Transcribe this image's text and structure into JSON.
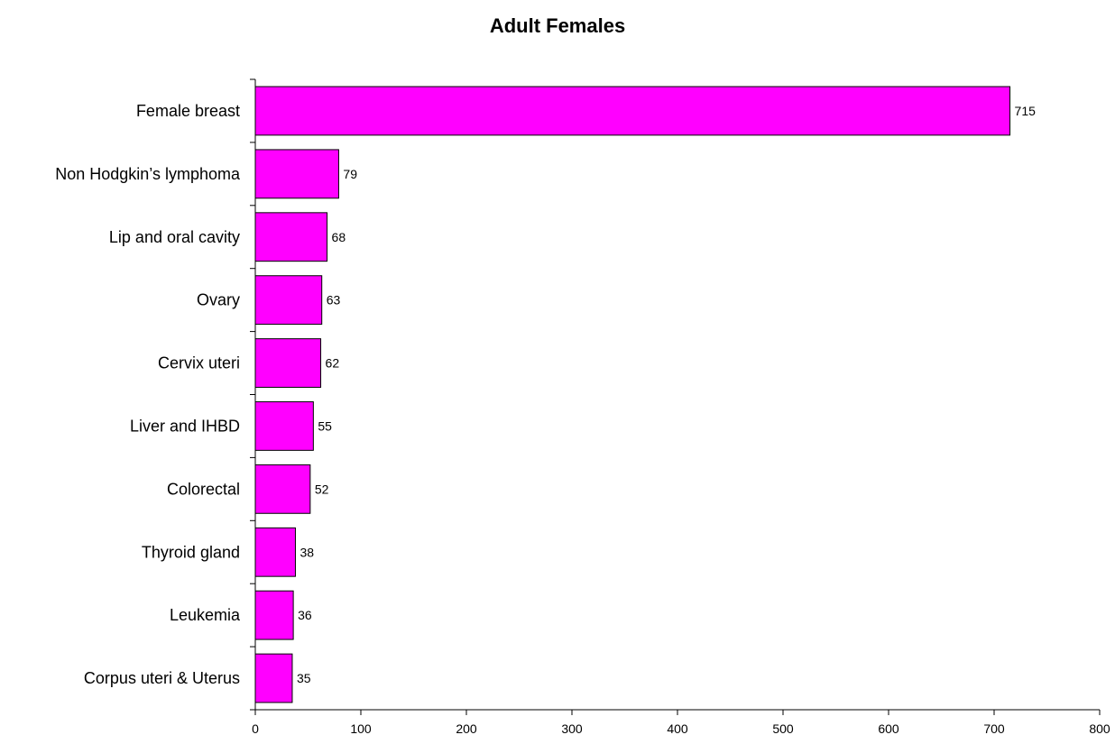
{
  "chart_data": {
    "type": "bar",
    "orientation": "horizontal",
    "title": "Adult Females",
    "xlabel": "",
    "ylabel": "",
    "categories": [
      "Female breast",
      "Non Hodgkin’s lymphoma",
      "Lip and oral cavity",
      "Ovary",
      "Cervix uteri",
      "Liver and IHBD",
      "Colorectal",
      "Thyroid gland",
      "Leukemia",
      "Corpus uteri & Uterus"
    ],
    "values": [
      715,
      79,
      68,
      63,
      62,
      55,
      52,
      38,
      36,
      35
    ],
    "xlim": [
      0,
      800
    ],
    "xticks": [
      0,
      100,
      200,
      300,
      400,
      500,
      600,
      700,
      800
    ],
    "grid": false,
    "legend": "none",
    "bar_color": "#FF00FF"
  }
}
